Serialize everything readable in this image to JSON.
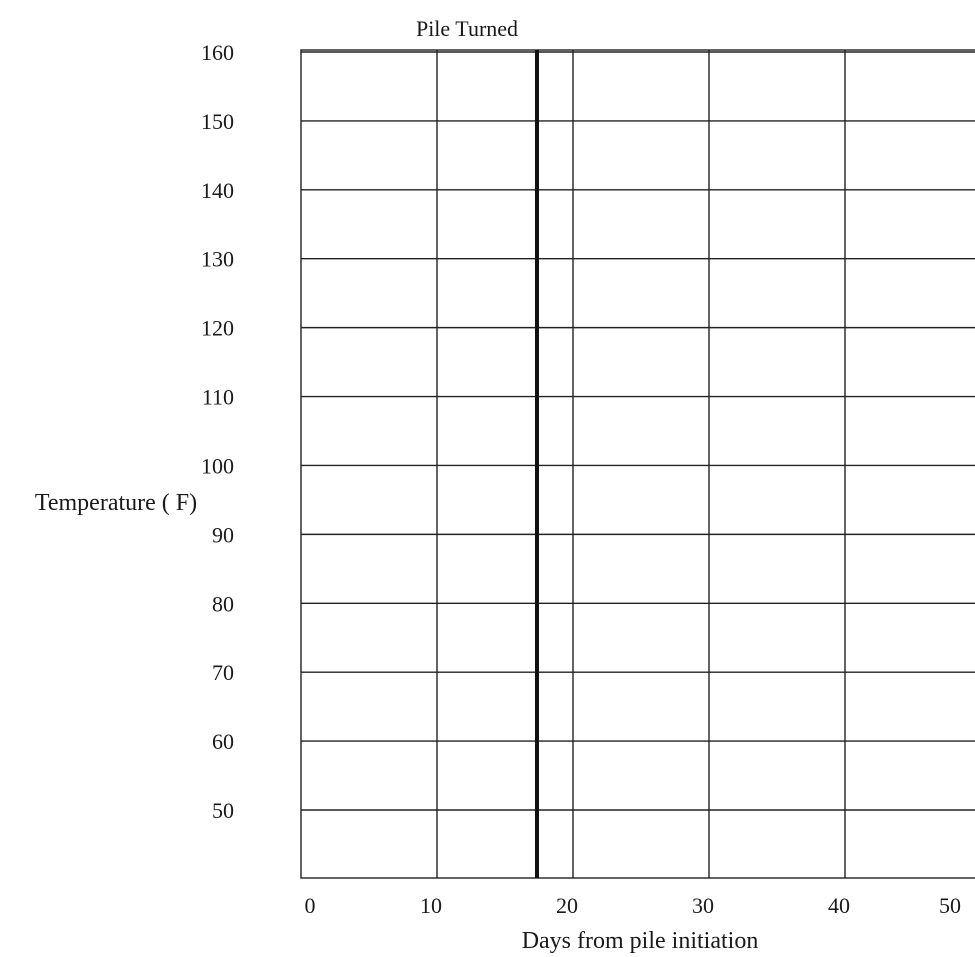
{
  "chart_data": {
    "type": "line",
    "title": "",
    "xlabel": "Days from pile initiation",
    "ylabel": "Temperature ( F)",
    "xlim": [
      0,
      50
    ],
    "ylim": [
      40,
      160
    ],
    "x_ticks": [
      0,
      10,
      20,
      30,
      40,
      50
    ],
    "y_ticks": [
      160,
      150,
      140,
      130,
      120,
      110,
      100,
      90,
      80,
      70,
      60,
      50
    ],
    "grid": true,
    "series": [],
    "annotations": [
      {
        "text": "Pile Turned",
        "x": 17.5
      }
    ]
  }
}
